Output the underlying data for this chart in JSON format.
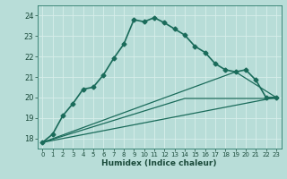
{
  "xlabel": "Humidex (Indice chaleur)",
  "xlim": [
    -0.5,
    23.5
  ],
  "ylim": [
    17.5,
    24.5
  ],
  "yticks": [
    18,
    19,
    20,
    21,
    22,
    23,
    24
  ],
  "xticks": [
    0,
    1,
    2,
    3,
    4,
    5,
    6,
    7,
    8,
    9,
    10,
    11,
    12,
    13,
    14,
    15,
    16,
    17,
    18,
    19,
    20,
    21,
    22,
    23
  ],
  "background_color": "#b8ddd8",
  "grid_color": "#d8eeea",
  "line_color": "#1a6b5a",
  "series": [
    {
      "x": [
        0,
        1,
        2,
        3,
        4,
        5,
        6,
        7,
        8,
        9,
        10,
        11,
        12,
        13,
        14,
        15,
        16,
        17,
        18,
        19,
        20,
        21,
        22,
        23
      ],
      "y": [
        17.8,
        18.2,
        19.1,
        19.7,
        20.4,
        20.5,
        21.1,
        21.9,
        22.6,
        23.8,
        23.7,
        23.9,
        23.65,
        23.35,
        23.05,
        22.5,
        22.2,
        21.65,
        21.35,
        21.25,
        21.35,
        20.85,
        20.0,
        20.0
      ],
      "with_marker": true,
      "linewidth": 1.2
    },
    {
      "x": [
        0,
        23
      ],
      "y": [
        17.8,
        20.0
      ],
      "with_marker": false,
      "linewidth": 0.9
    },
    {
      "x": [
        0,
        14,
        23
      ],
      "y": [
        17.8,
        19.95,
        19.95
      ],
      "with_marker": false,
      "linewidth": 0.9
    },
    {
      "x": [
        0,
        19,
        23
      ],
      "y": [
        17.8,
        21.25,
        20.0
      ],
      "with_marker": false,
      "linewidth": 0.9
    }
  ]
}
